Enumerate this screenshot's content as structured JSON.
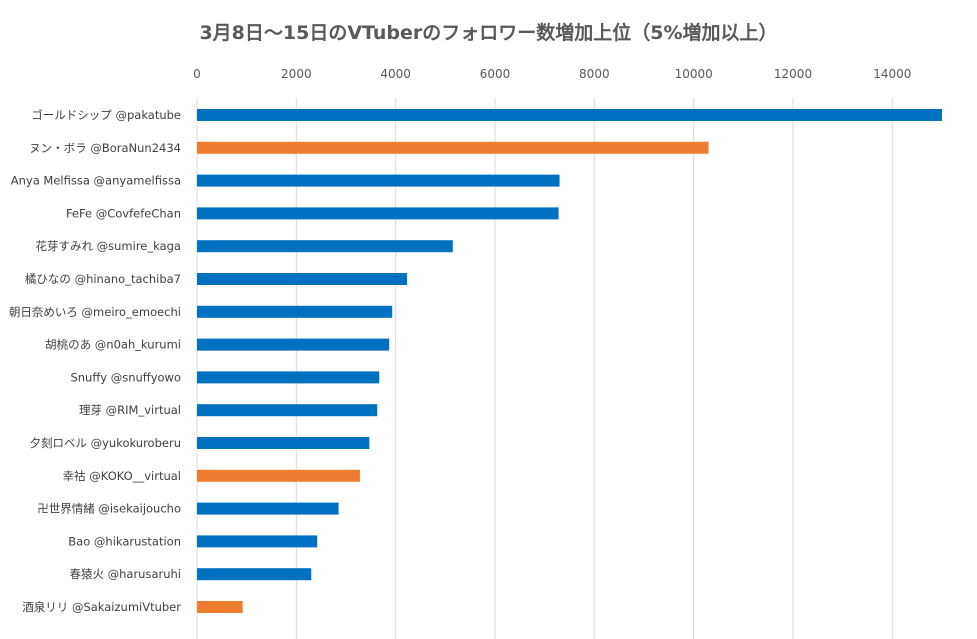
{
  "chart_data": {
    "type": "bar",
    "orientation": "horizontal",
    "title": "3月8日〜15日のVTuberのフォロワー数増加上位（5%増加以上）",
    "xlabel": "",
    "ylabel": "",
    "xlim": [
      0,
      15000
    ],
    "xticks": [
      0,
      2000,
      4000,
      6000,
      8000,
      10000,
      12000,
      14000
    ],
    "x_axis_position": "top",
    "grid": true,
    "legend": "none",
    "colors": {
      "blue": "#0070c0",
      "orange": "#ed7d31"
    },
    "categories": [
      "ゴールドシップ @pakatube",
      "ヌン・ボラ @BoraNun2434",
      "Anya Melfissa @anyamelfissa",
      "FeFe @CovfefeChan",
      "花芽すみれ @sumire_kaga",
      "橘ひなの @hinano_tachiba7",
      "朝日奈めいろ @meiro_emoechi",
      "胡桃のあ @n0ah_kurumi",
      "Snuffy @snuffyowo",
      "理芽 @RIM_virtual",
      "夕刻ロベル @yukokuroberu",
      "幸祜 @KOKO__virtual",
      "卍世界情緒 @isekaijoucho",
      "Bao @hikarustation",
      "春猿火 @harusaruhi",
      "酒泉リリ @SakaizumiVtuber"
    ],
    "values": [
      15000,
      10300,
      7300,
      7280,
      5150,
      4230,
      3930,
      3870,
      3670,
      3630,
      3470,
      3280,
      2850,
      2420,
      2300,
      920
    ],
    "bar_colors": [
      "blue",
      "orange",
      "blue",
      "blue",
      "blue",
      "blue",
      "blue",
      "blue",
      "blue",
      "blue",
      "blue",
      "orange",
      "blue",
      "blue",
      "blue",
      "orange"
    ]
  }
}
